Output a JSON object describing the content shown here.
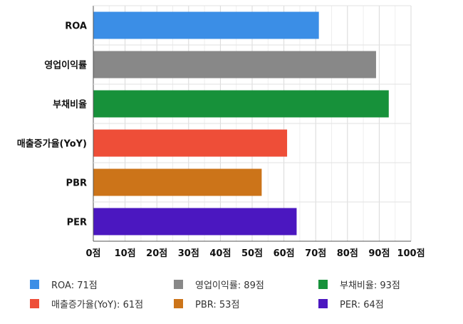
{
  "chart_data": {
    "type": "bar",
    "orientation": "horizontal",
    "categories": [
      "ROA",
      "영업이익률",
      "부채비율",
      "매출증가율(YoY)",
      "PBR",
      "PER"
    ],
    "values": [
      71,
      89,
      93,
      61,
      53,
      64
    ],
    "colors": [
      "#3b8ee6",
      "#888888",
      "#17913a",
      "#ee4e38",
      "#cc7419",
      "#4b17c0"
    ],
    "xlim": [
      0,
      100
    ],
    "x_ticks": [
      "0점",
      "10점",
      "20점",
      "30점",
      "40점",
      "50점",
      "60점",
      "70점",
      "80점",
      "90점",
      "100점"
    ],
    "grid": true,
    "legend_position": "bottom",
    "legend": [
      "ROA: 71점",
      "영업이익률: 89점",
      "부채비율: 93점",
      "매출증가율(YoY): 61점",
      "PBR: 53점",
      "PER: 64점"
    ]
  }
}
